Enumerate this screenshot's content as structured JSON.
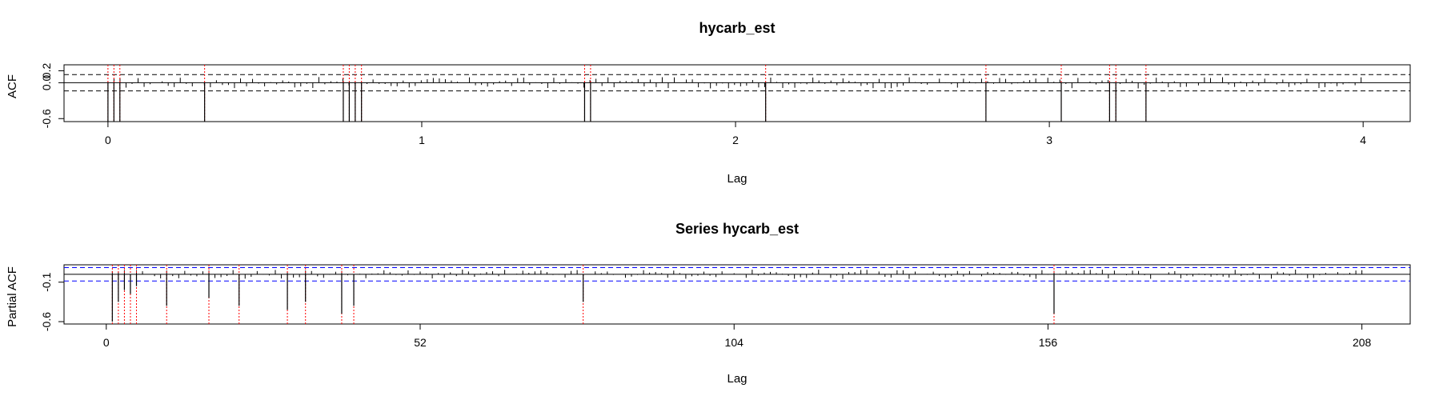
{
  "colors": {
    "frame": "#000000",
    "bar": "#000000",
    "ci_acf": "#000000",
    "ci_pacf": "#0000ff",
    "marker": "#ff0000"
  },
  "chart_data": [
    {
      "type": "bar",
      "title": "hycarb_est",
      "xlabel": "Lag",
      "ylabel": "ACF",
      "xlim": [
        -0.14,
        4.15
      ],
      "ylim": [
        -0.65,
        0.3
      ],
      "xticks": [
        0,
        1,
        2,
        3,
        4
      ],
      "yticks": [
        -0.6,
        0.0,
        0.2
      ],
      "ytick_labels": [
        "-0.6",
        "0.0",
        "0.2"
      ],
      "ci": 0.136,
      "lag_step": 0.0192,
      "n_lags": 208,
      "spikes": [
        {
          "lag": 0.0,
          "value": -0.65
        },
        {
          "lag": 0.019,
          "value": -0.65
        },
        {
          "lag": 0.038,
          "value": -0.65
        },
        {
          "lag": 0.308,
          "value": -0.65
        },
        {
          "lag": 0.75,
          "value": -0.65
        },
        {
          "lag": 0.769,
          "value": -0.65
        },
        {
          "lag": 0.788,
          "value": -0.65
        },
        {
          "lag": 0.808,
          "value": -0.65
        },
        {
          "lag": 1.519,
          "value": -0.65
        },
        {
          "lag": 1.538,
          "value": -0.65
        },
        {
          "lag": 2.096,
          "value": -0.65
        },
        {
          "lag": 2.798,
          "value": -0.65
        },
        {
          "lag": 3.038,
          "value": -0.65
        },
        {
          "lag": 3.192,
          "value": -0.65
        },
        {
          "lag": 3.212,
          "value": -0.65
        },
        {
          "lag": 3.308,
          "value": -0.65
        }
      ]
    },
    {
      "type": "bar",
      "title": "Series  hycarb_est",
      "xlabel": "Lag",
      "ylabel": "Partial ACF",
      "xlim": [
        -7,
        216
      ],
      "ylim": [
        -0.63,
        0.12
      ],
      "xticks": [
        0,
        52,
        104,
        156,
        208
      ],
      "yticks": [
        -0.6,
        -0.1
      ],
      "ytick_labels": [
        "-0.6",
        "-0.1"
      ],
      "ci": 0.085,
      "lag_step": 1,
      "n_lags": 208,
      "spikes": [
        {
          "lag": 1,
          "value": -0.6
        },
        {
          "lag": 2,
          "value": -0.35
        },
        {
          "lag": 3,
          "value": -0.2
        },
        {
          "lag": 4,
          "value": -0.25
        },
        {
          "lag": 5,
          "value": -0.15
        },
        {
          "lag": 10,
          "value": -0.4
        },
        {
          "lag": 17,
          "value": -0.3
        },
        {
          "lag": 22,
          "value": -0.4
        },
        {
          "lag": 30,
          "value": -0.45
        },
        {
          "lag": 33,
          "value": -0.35
        },
        {
          "lag": 39,
          "value": -0.5
        },
        {
          "lag": 41,
          "value": -0.4
        },
        {
          "lag": 79,
          "value": -0.35
        },
        {
          "lag": 157,
          "value": -0.5
        }
      ]
    }
  ]
}
